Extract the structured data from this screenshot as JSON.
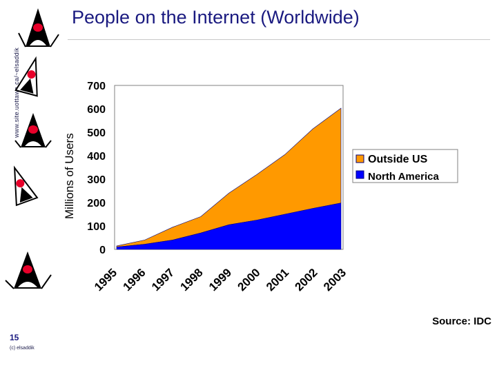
{
  "slide": {
    "side_text": "www.site.uottawa.ca/~elsaddik",
    "title": "People on the Internet (Worldwide)",
    "source": "Source: IDC",
    "page_number": "15",
    "copyright": "(c) elsaddik"
  },
  "colors": {
    "title": "#1a1a80",
    "outside_us": "#ff9900",
    "north_america": "#0000ff",
    "outline": "#000080"
  },
  "chart_data": {
    "type": "area",
    "stacked": true,
    "title": "",
    "xlabel": "",
    "ylabel": "Millions of Users",
    "categories": [
      "1995",
      "1996",
      "1997",
      "1998",
      "1999",
      "2000",
      "2001",
      "2002",
      "2003"
    ],
    "ylim": [
      0,
      700
    ],
    "yticks": [
      0,
      100,
      200,
      300,
      400,
      500,
      600,
      700
    ],
    "grid": false,
    "legend_position": "right",
    "series": [
      {
        "name": "North America",
        "values": [
          10,
          22,
          40,
          70,
          105,
          125,
          150,
          175,
          198
        ]
      },
      {
        "name": "Outside US",
        "values": [
          5,
          18,
          55,
          70,
          135,
          195,
          255,
          340,
          405
        ]
      }
    ]
  }
}
